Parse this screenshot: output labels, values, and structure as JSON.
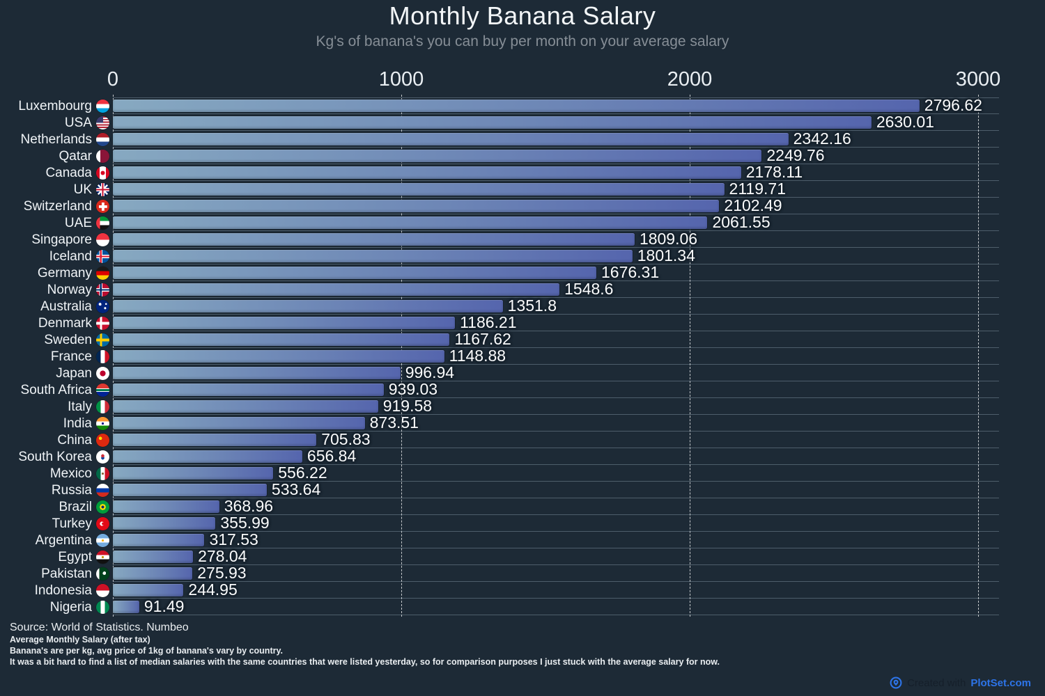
{
  "chart_data": {
    "type": "bar",
    "orientation": "horizontal",
    "title": "Monthly Banana Salary",
    "subtitle": "Kg's of banana's you can buy per month on your average salary",
    "xlim": [
      0,
      3000
    ],
    "x_ticks": [
      0,
      1000,
      2000,
      3000
    ],
    "grid": "dashed-vertical-gridlines-with-horizontal-row-separators",
    "legend": "none",
    "background_color": "#1d2a36",
    "bar_gradient": [
      "#87a9c1",
      "#5565ad"
    ],
    "categories": [
      "Luxembourg",
      "USA",
      "Netherlands",
      "Qatar",
      "Canada",
      "UK",
      "Switzerland",
      "UAE",
      "Singapore",
      "Iceland",
      "Germany",
      "Norway",
      "Australia",
      "Denmark",
      "Sweden",
      "France",
      "Japan",
      "South Africa",
      "Italy",
      "India",
      "China",
      "South Korea",
      "Mexico",
      "Russia",
      "Brazil",
      "Turkey",
      "Argentina",
      "Egypt",
      "Pakistan",
      "Indonesia",
      "Nigeria"
    ],
    "values": [
      2796.62,
      2630.01,
      2342.16,
      2249.76,
      2178.11,
      2119.71,
      2102.49,
      2061.55,
      1809.06,
      1801.34,
      1676.31,
      1548.6,
      1351.8,
      1186.21,
      1167.62,
      1148.88,
      996.94,
      939.03,
      919.58,
      873.51,
      705.83,
      656.84,
      556.22,
      533.64,
      368.96,
      355.99,
      317.53,
      278.04,
      275.93,
      244.95,
      91.49
    ],
    "flags": [
      "lu",
      "us",
      "nl",
      "qa",
      "ca",
      "gb",
      "ch",
      "ae",
      "sg",
      "is",
      "de",
      "no",
      "au",
      "dk",
      "se",
      "fr",
      "jp",
      "za",
      "it",
      "in",
      "cn",
      "kr",
      "mx",
      "ru",
      "br",
      "tr",
      "ar",
      "eg",
      "pk",
      "id",
      "ng"
    ]
  },
  "footer": {
    "source": "Source: World of Statistics. Numbeo",
    "note1": "Average Monthly Salary (after tax)",
    "note2": "Banana's are per kg, avg price of 1kg of banana's vary by country.",
    "note3": "It was a bit hard to find a list of median salaries with the same countries that were listed yesterday, so for comparison purposes I just stuck with the average salary for now."
  },
  "branding": {
    "prefix": "Created with",
    "brand": "PlotSet.com",
    "brand_color": "#2d74e8"
  }
}
